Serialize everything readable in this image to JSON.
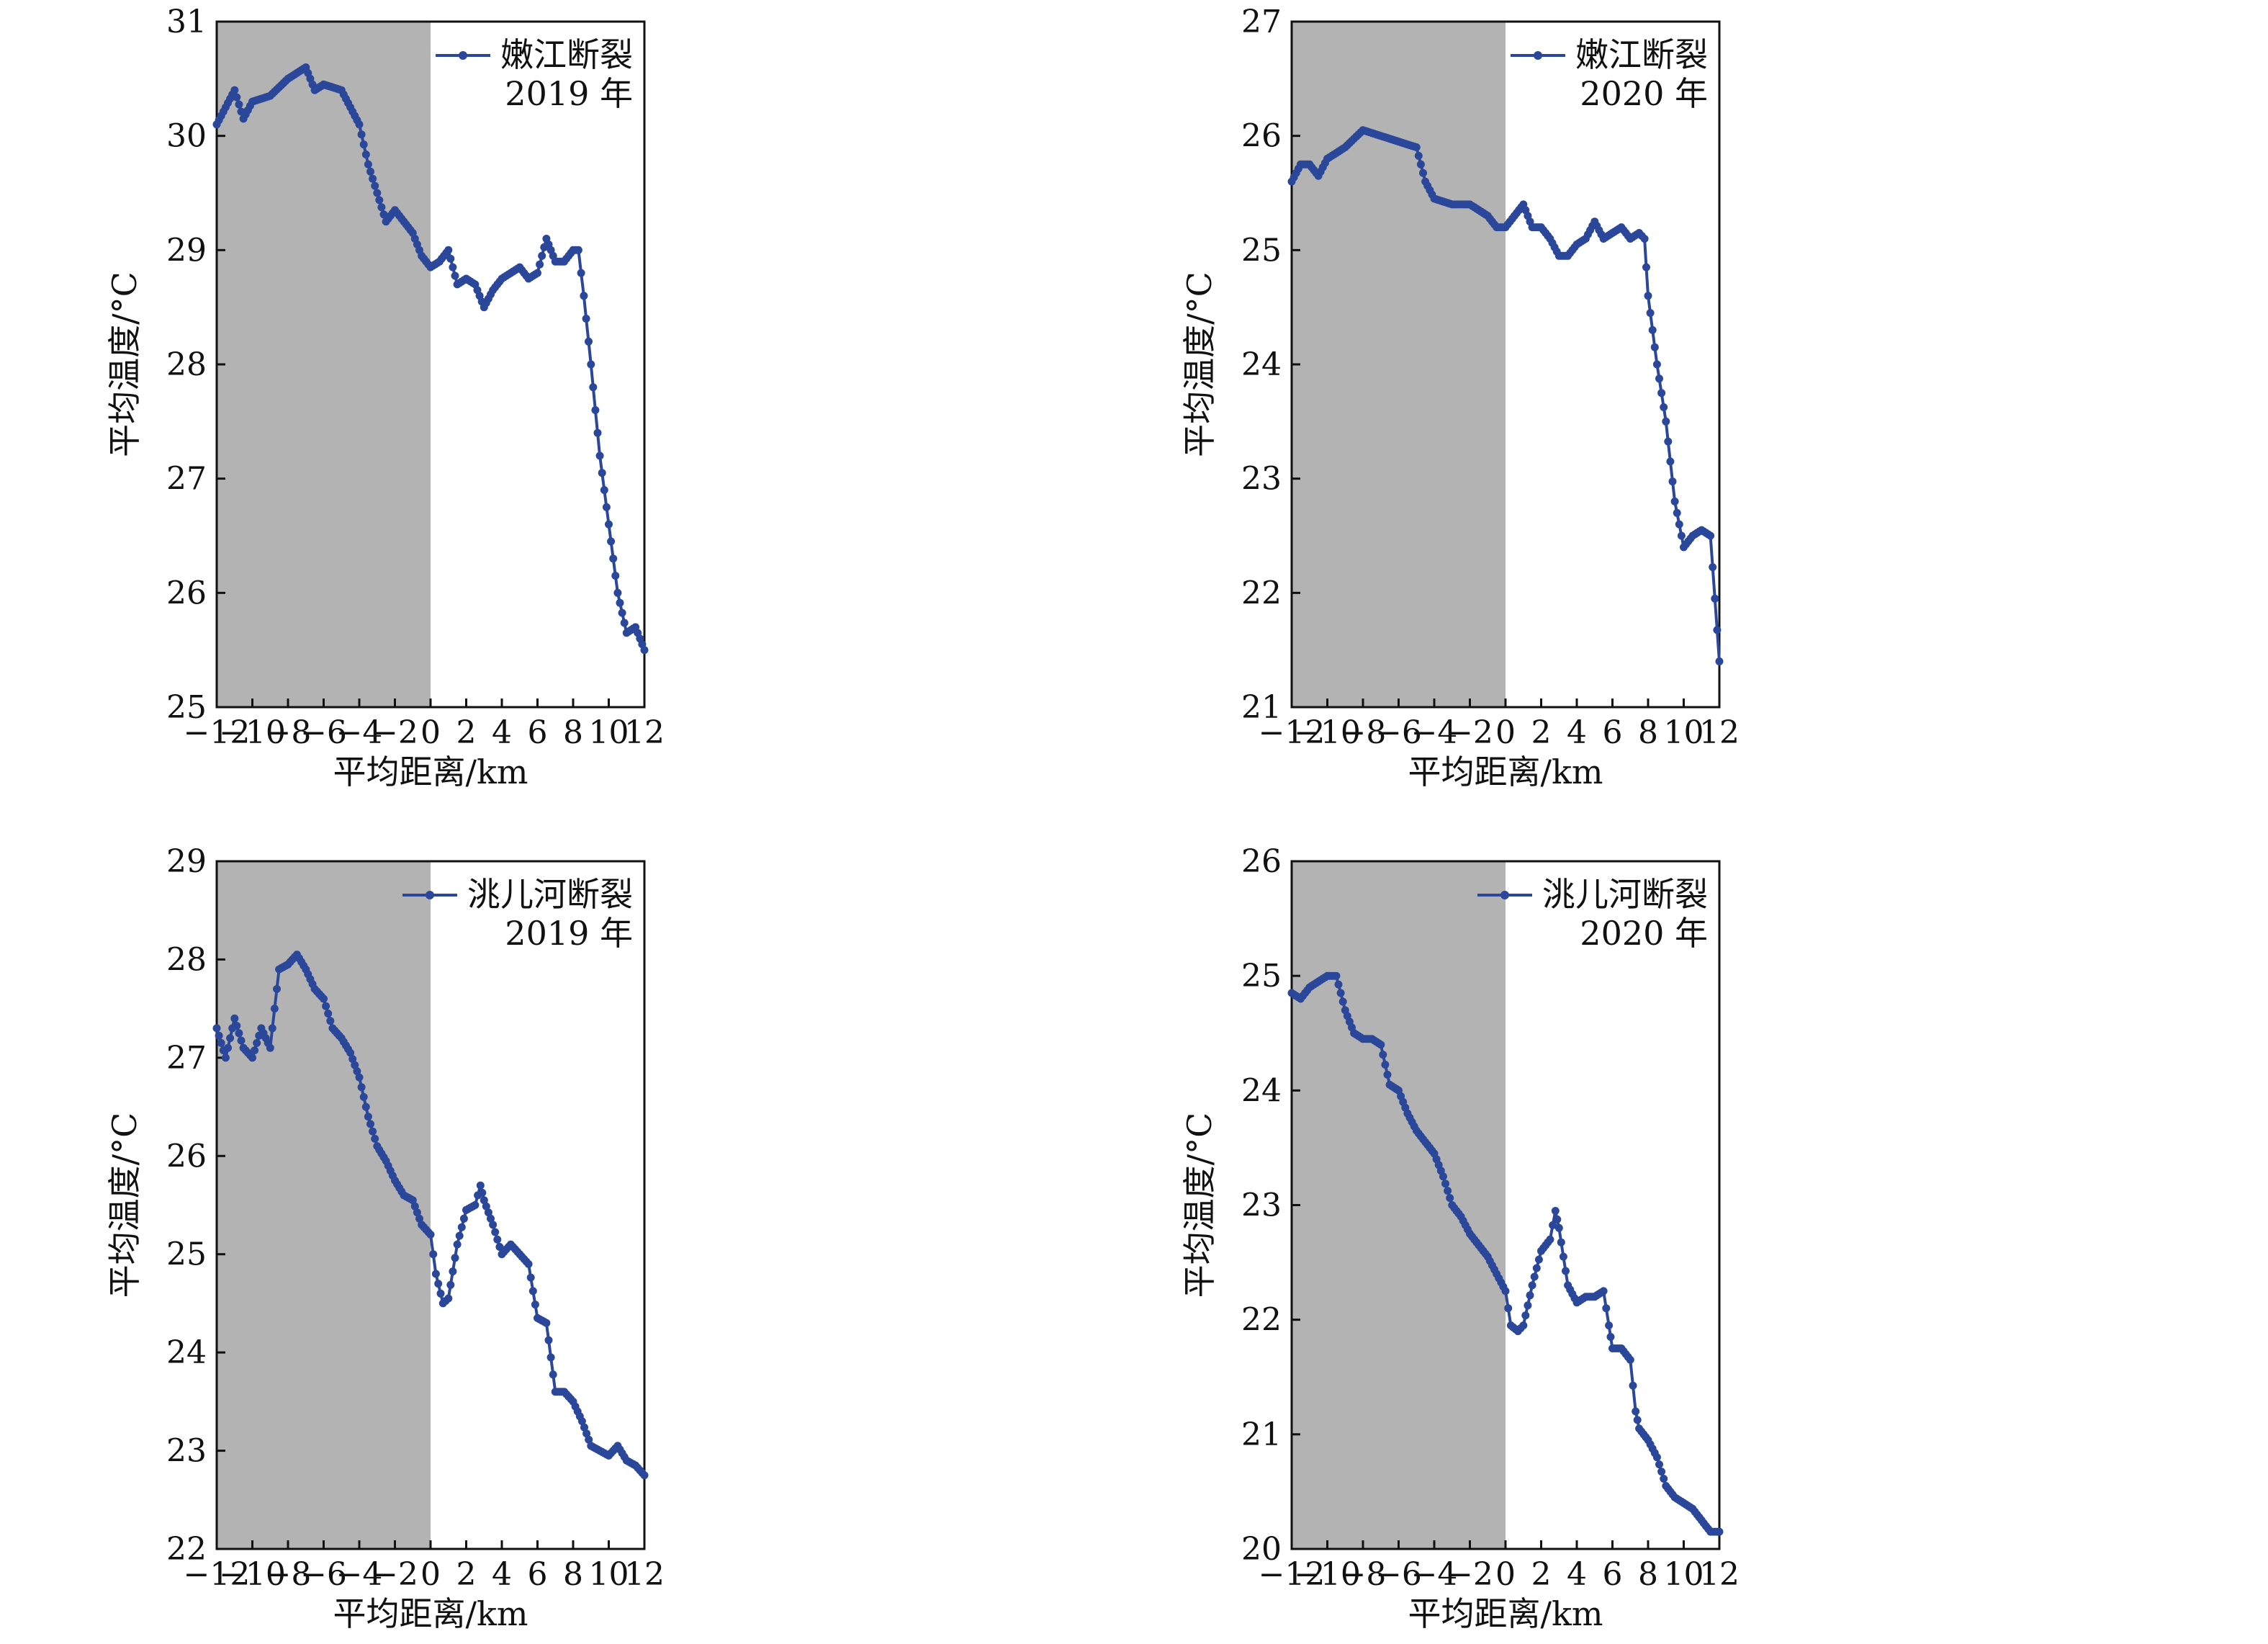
{
  "style": {
    "series_color": "#2B479A",
    "shade_color": "#B3B3B3",
    "axis_color": "#111111"
  },
  "chart_data": [
    {
      "type": "line",
      "xlabel": "平均距离/km",
      "ylabel": "平均温度/°C",
      "xlim": [
        -12,
        12
      ],
      "ylim": [
        25,
        31
      ],
      "xticks": [
        "−12",
        "−10",
        "−8",
        "−6",
        "−4",
        "−2",
        "0",
        "2",
        "4",
        "6",
        "8",
        "10",
        "12"
      ],
      "yticks": [
        "25",
        "26",
        "27",
        "28",
        "29",
        "30",
        "31"
      ],
      "shaded_region": [
        -12,
        0
      ],
      "legend": {
        "line1": "嫩江断裂",
        "line2": "2019 年",
        "placement": "top-right"
      },
      "series": [
        {
          "name": "嫩江断裂",
          "points": [
            [
              -12,
              30.1
            ],
            [
              -11,
              30.4
            ],
            [
              -10.5,
              30.15
            ],
            [
              -10,
              30.3
            ],
            [
              -9,
              30.35
            ],
            [
              -8,
              30.5
            ],
            [
              -7,
              30.6
            ],
            [
              -6.5,
              30.4
            ],
            [
              -6,
              30.45
            ],
            [
              -5,
              30.4
            ],
            [
              -4.5,
              30.25
            ],
            [
              -4,
              30.1
            ],
            [
              -3.5,
              29.75
            ],
            [
              -3,
              29.5
            ],
            [
              -2.5,
              29.25
            ],
            [
              -2,
              29.35
            ],
            [
              -1.5,
              29.25
            ],
            [
              -1,
              29.15
            ],
            [
              -0.5,
              28.95
            ],
            [
              0,
              28.85
            ],
            [
              0.5,
              28.9
            ],
            [
              1,
              29.0
            ],
            [
              1.5,
              28.7
            ],
            [
              2,
              28.75
            ],
            [
              2.5,
              28.7
            ],
            [
              3,
              28.5
            ],
            [
              3.5,
              28.65
            ],
            [
              4,
              28.75
            ],
            [
              4.5,
              28.8
            ],
            [
              5,
              28.85
            ],
            [
              5.5,
              28.75
            ],
            [
              6,
              28.8
            ],
            [
              6.5,
              29.1
            ],
            [
              7,
              28.9
            ],
            [
              7.5,
              28.9
            ],
            [
              8,
              29.0
            ],
            [
              8.3,
              29.0
            ],
            [
              8.6,
              28.6
            ],
            [
              9,
              28.0
            ],
            [
              9.5,
              27.2
            ],
            [
              10,
              26.6
            ],
            [
              10.5,
              26.0
            ],
            [
              11,
              25.65
            ],
            [
              11.5,
              25.7
            ],
            [
              12,
              25.5
            ]
          ]
        }
      ]
    },
    {
      "type": "line",
      "xlabel": "平均距离/km",
      "ylabel": "平均温度/°C",
      "xlim": [
        -12,
        12
      ],
      "ylim": [
        21,
        27
      ],
      "xticks": [
        "−12",
        "−10",
        "−8",
        "−6",
        "−4",
        "−2",
        "0",
        "2",
        "4",
        "6",
        "8",
        "10",
        "12"
      ],
      "yticks": [
        "21",
        "22",
        "23",
        "24",
        "25",
        "26",
        "27"
      ],
      "shaded_region": [
        -12,
        0
      ],
      "legend": {
        "line1": "嫩江断裂",
        "line2": "2020 年",
        "placement": "top-right"
      },
      "series": [
        {
          "name": "嫩江断裂",
          "points": [
            [
              -12,
              25.6
            ],
            [
              -11.5,
              25.75
            ],
            [
              -11,
              25.75
            ],
            [
              -10.5,
              25.65
            ],
            [
              -10,
              25.8
            ],
            [
              -9,
              25.9
            ],
            [
              -8,
              26.05
            ],
            [
              -7,
              26.0
            ],
            [
              -6,
              25.95
            ],
            [
              -5,
              25.9
            ],
            [
              -4.5,
              25.6
            ],
            [
              -4,
              25.45
            ],
            [
              -3,
              25.4
            ],
            [
              -2,
              25.4
            ],
            [
              -1,
              25.3
            ],
            [
              -0.5,
              25.2
            ],
            [
              0,
              25.2
            ],
            [
              0.5,
              25.3
            ],
            [
              1,
              25.4
            ],
            [
              1.5,
              25.2
            ],
            [
              2,
              25.2
            ],
            [
              2.5,
              25.1
            ],
            [
              3,
              24.95
            ],
            [
              3.5,
              24.95
            ],
            [
              4,
              25.05
            ],
            [
              4.5,
              25.1
            ],
            [
              5,
              25.25
            ],
            [
              5.5,
              25.1
            ],
            [
              6,
              25.15
            ],
            [
              6.5,
              25.2
            ],
            [
              7,
              25.1
            ],
            [
              7.5,
              25.15
            ],
            [
              7.8,
              25.1
            ],
            [
              8,
              24.6
            ],
            [
              8.5,
              24.0
            ],
            [
              9,
              23.5
            ],
            [
              9.5,
              22.8
            ],
            [
              10,
              22.4
            ],
            [
              10.5,
              22.5
            ],
            [
              11,
              22.55
            ],
            [
              11.5,
              22.5
            ],
            [
              12,
              21.4
            ]
          ]
        }
      ]
    },
    {
      "type": "line",
      "xlabel": "平均距离/km",
      "ylabel": "平均温度/°C",
      "xlim": [
        -12,
        12
      ],
      "ylim": [
        22,
        29
      ],
      "xticks": [
        "−12",
        "−10",
        "−8",
        "−6",
        "−4",
        "−2",
        "0",
        "2",
        "4",
        "6",
        "8",
        "10",
        "12"
      ],
      "yticks": [
        "22",
        "23",
        "24",
        "25",
        "26",
        "27",
        "28",
        "29"
      ],
      "shaded_region": [
        -12,
        0
      ],
      "legend": {
        "line1": "洮儿河断裂",
        "line2": "2019 年",
        "placement": "top-right"
      },
      "series": [
        {
          "name": "洮儿河断裂",
          "points": [
            [
              -12,
              27.3
            ],
            [
              -11.5,
              27.0
            ],
            [
              -11,
              27.4
            ],
            [
              -10.5,
              27.1
            ],
            [
              -10,
              27.0
            ],
            [
              -9.5,
              27.3
            ],
            [
              -9,
              27.1
            ],
            [
              -8.5,
              27.9
            ],
            [
              -8,
              27.95
            ],
            [
              -7.5,
              28.05
            ],
            [
              -7,
              27.9
            ],
            [
              -6.5,
              27.7
            ],
            [
              -6,
              27.6
            ],
            [
              -5.5,
              27.3
            ],
            [
              -5,
              27.2
            ],
            [
              -4.5,
              27.05
            ],
            [
              -4,
              26.8
            ],
            [
              -3.5,
              26.4
            ],
            [
              -3,
              26.1
            ],
            [
              -2.5,
              25.95
            ],
            [
              -2,
              25.75
            ],
            [
              -1.5,
              25.6
            ],
            [
              -1,
              25.55
            ],
            [
              -0.5,
              25.3
            ],
            [
              0,
              25.2
            ],
            [
              0.3,
              24.8
            ],
            [
              0.7,
              24.5
            ],
            [
              1,
              24.55
            ],
            [
              1.5,
              25.1
            ],
            [
              2,
              25.45
            ],
            [
              2.5,
              25.5
            ],
            [
              2.8,
              25.7
            ],
            [
              3,
              25.55
            ],
            [
              3.5,
              25.3
            ],
            [
              4,
              25.0
            ],
            [
              4.5,
              25.1
            ],
            [
              5,
              25.0
            ],
            [
              5.5,
              24.9
            ],
            [
              6,
              24.35
            ],
            [
              6.5,
              24.3
            ],
            [
              7,
              23.6
            ],
            [
              7.5,
              23.6
            ],
            [
              8,
              23.5
            ],
            [
              8.5,
              23.3
            ],
            [
              9,
              23.05
            ],
            [
              9.5,
              23.0
            ],
            [
              10,
              22.95
            ],
            [
              10.5,
              23.05
            ],
            [
              11,
              22.9
            ],
            [
              11.5,
              22.85
            ],
            [
              12,
              22.75
            ]
          ]
        }
      ]
    },
    {
      "type": "line",
      "xlabel": "平均距离/km",
      "ylabel": "平均温度/°C",
      "xlim": [
        -12,
        12
      ],
      "ylim": [
        20,
        26
      ],
      "xticks": [
        "−12",
        "−10",
        "−8",
        "−6",
        "−4",
        "−2",
        "0",
        "2",
        "4",
        "6",
        "8",
        "10",
        "12"
      ],
      "yticks": [
        "20",
        "21",
        "22",
        "23",
        "24",
        "25",
        "26"
      ],
      "shaded_region": [
        -12,
        0
      ],
      "legend": {
        "line1": "洮儿河断裂",
        "line2": "2020 年",
        "placement": "top-right"
      },
      "series": [
        {
          "name": "洮儿河断裂",
          "points": [
            [
              -12,
              24.85
            ],
            [
              -11.5,
              24.8
            ],
            [
              -11,
              24.9
            ],
            [
              -10.5,
              24.95
            ],
            [
              -10,
              25.0
            ],
            [
              -9.5,
              25.0
            ],
            [
              -9,
              24.7
            ],
            [
              -8.5,
              24.5
            ],
            [
              -8,
              24.45
            ],
            [
              -7.5,
              24.45
            ],
            [
              -7,
              24.4
            ],
            [
              -6.5,
              24.05
            ],
            [
              -6,
              24.0
            ],
            [
              -5.5,
              23.8
            ],
            [
              -5,
              23.65
            ],
            [
              -4.5,
              23.55
            ],
            [
              -4,
              23.45
            ],
            [
              -3.5,
              23.25
            ],
            [
              -3,
              23.0
            ],
            [
              -2.5,
              22.9
            ],
            [
              -2,
              22.75
            ],
            [
              -1.5,
              22.65
            ],
            [
              -1,
              22.55
            ],
            [
              -0.5,
              22.4
            ],
            [
              0,
              22.25
            ],
            [
              0.3,
              21.95
            ],
            [
              0.7,
              21.9
            ],
            [
              1,
              21.95
            ],
            [
              1.5,
              22.3
            ],
            [
              2,
              22.6
            ],
            [
              2.5,
              22.7
            ],
            [
              2.8,
              22.95
            ],
            [
              3,
              22.8
            ],
            [
              3.5,
              22.3
            ],
            [
              4,
              22.15
            ],
            [
              4.5,
              22.2
            ],
            [
              5,
              22.2
            ],
            [
              5.5,
              22.25
            ],
            [
              5.8,
              21.95
            ],
            [
              6,
              21.75
            ],
            [
              6.5,
              21.75
            ],
            [
              7,
              21.65
            ],
            [
              7.3,
              21.2
            ],
            [
              7.5,
              21.05
            ],
            [
              8,
              20.95
            ],
            [
              8.5,
              20.8
            ],
            [
              9,
              20.55
            ],
            [
              9.5,
              20.45
            ],
            [
              10,
              20.4
            ],
            [
              10.5,
              20.35
            ],
            [
              11,
              20.25
            ],
            [
              11.5,
              20.15
            ],
            [
              12,
              20.15
            ]
          ]
        }
      ]
    }
  ]
}
